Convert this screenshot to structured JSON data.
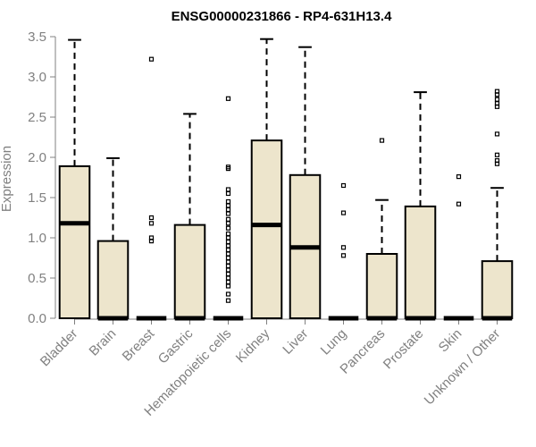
{
  "chart_data": {
    "type": "boxplot",
    "title": "ENSG00000231866 - RP4-631H13.4",
    "ylabel": "Expression",
    "xlabel": "",
    "ylim": [
      0,
      3.5
    ],
    "yticks": [
      "0.0",
      "0.5",
      "1.0",
      "1.5",
      "2.0",
      "2.5",
      "3.0",
      "3.5"
    ],
    "categories": [
      "Bladder",
      "Brain",
      "Breast",
      "Gastric",
      "Hematopoietic cells",
      "Kidney",
      "Liver",
      "Lung",
      "Pancreas",
      "Prostate",
      "Skin",
      "Unknown / Other"
    ],
    "boxes": [
      {
        "q1": 0.0,
        "median": 1.18,
        "q3": 1.89,
        "whisker_low": 0.0,
        "whisker_high": 3.46,
        "outliers": []
      },
      {
        "q1": 0.0,
        "median": 0.0,
        "q3": 0.96,
        "whisker_low": 0.0,
        "whisker_high": 1.99,
        "outliers": []
      },
      {
        "q1": 0.0,
        "median": 0.0,
        "q3": 0.0,
        "whisker_low": 0.0,
        "whisker_high": 0.0,
        "outliers": [
          3.22,
          1.25,
          1.18,
          1.0,
          0.96
        ]
      },
      {
        "q1": 0.0,
        "median": 0.0,
        "q3": 1.16,
        "whisker_low": 0.0,
        "whisker_high": 2.54,
        "outliers": []
      },
      {
        "q1": 0.0,
        "median": 0.0,
        "q3": 0.0,
        "whisker_low": 0.0,
        "whisker_high": 0.0,
        "outliers": [
          2.73,
          1.88,
          1.86,
          1.6,
          1.55,
          1.45,
          1.4,
          1.35,
          1.3,
          1.23,
          1.18,
          1.12,
          1.05,
          1.0,
          0.95,
          0.9,
          0.85,
          0.8,
          0.75,
          0.7,
          0.65,
          0.6,
          0.55,
          0.5,
          0.45,
          0.4,
          0.3,
          0.22
        ]
      },
      {
        "q1": 0.0,
        "median": 1.16,
        "q3": 2.21,
        "whisker_low": 0.0,
        "whisker_high": 3.47,
        "outliers": []
      },
      {
        "q1": 0.0,
        "median": 0.88,
        "q3": 1.78,
        "whisker_low": 0.0,
        "whisker_high": 3.37,
        "outliers": []
      },
      {
        "q1": 0.0,
        "median": 0.0,
        "q3": 0.0,
        "whisker_low": 0.0,
        "whisker_high": 0.0,
        "outliers": [
          1.65,
          1.31,
          0.88,
          0.78
        ]
      },
      {
        "q1": 0.0,
        "median": 0.0,
        "q3": 0.8,
        "whisker_low": 0.0,
        "whisker_high": 1.47,
        "outliers": [
          2.21
        ]
      },
      {
        "q1": 0.0,
        "median": 0.0,
        "q3": 1.39,
        "whisker_low": 0.0,
        "whisker_high": 2.81,
        "outliers": []
      },
      {
        "q1": 0.0,
        "median": 0.0,
        "q3": 0.0,
        "whisker_low": 0.0,
        "whisker_high": 0.0,
        "outliers": [
          1.76,
          1.42
        ]
      },
      {
        "q1": 0.0,
        "median": 0.0,
        "q3": 0.71,
        "whisker_low": 0.0,
        "whisker_high": 1.62,
        "outliers": [
          2.82,
          2.78,
          2.72,
          2.67,
          2.63,
          2.29,
          2.03,
          1.96,
          1.92
        ]
      }
    ],
    "colors": {
      "box_fill": "#ede5cc",
      "box_stroke": "#000000",
      "axis": "#808080",
      "tick_text": "#808080",
      "title_text": "#000000"
    },
    "grid": false,
    "legend": "none"
  }
}
